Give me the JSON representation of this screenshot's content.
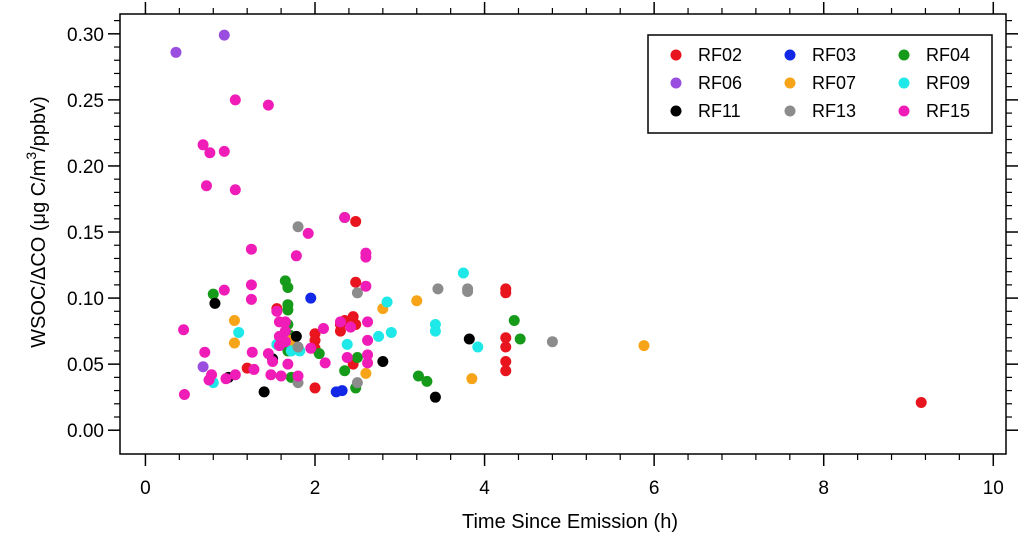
{
  "chart_data": {
    "type": "scatter",
    "xlabel": "Time Since Emission (h)",
    "ylabel": {
      "pre": "WSOC/",
      "delta": "Δ",
      "mid": "CO (",
      "mu": "μ",
      "post": "g C/m",
      "sup": "3",
      "tail": "/ppbv)"
    },
    "xlim": [
      -0.3,
      10.15
    ],
    "ylim": [
      -0.018,
      0.315
    ],
    "xticks": [
      0,
      2,
      4,
      6,
      8,
      10
    ],
    "xtick_labels": [
      "0",
      "2",
      "4",
      "6",
      "8",
      "10"
    ],
    "yticks": [
      0,
      0.05,
      0.1,
      0.15,
      0.2,
      0.25,
      0.3
    ],
    "ytick_labels": [
      "0.00",
      "0.05",
      "0.10",
      "0.15",
      "0.20",
      "0.25",
      "0.30"
    ],
    "grid": false,
    "legend_position": "top-right",
    "series": [
      {
        "name": "RF02",
        "color": "#e8141e",
        "points": [
          [
            1.2,
            0.047
          ],
          [
            1.55,
            0.092
          ],
          [
            2.0,
            0.032
          ],
          [
            2.0,
            0.062
          ],
          [
            2.0,
            0.068
          ],
          [
            2.0,
            0.073
          ],
          [
            2.3,
            0.075
          ],
          [
            2.3,
            0.08
          ],
          [
            2.35,
            0.083
          ],
          [
            2.45,
            0.05
          ],
          [
            2.45,
            0.086
          ],
          [
            2.48,
            0.08
          ],
          [
            2.48,
            0.112
          ],
          [
            2.48,
            0.158
          ],
          [
            4.25,
            0.107
          ],
          [
            4.25,
            0.104
          ],
          [
            4.25,
            0.07
          ],
          [
            4.25,
            0.063
          ],
          [
            4.25,
            0.052
          ],
          [
            4.25,
            0.045
          ],
          [
            9.15,
            0.021
          ]
        ]
      },
      {
        "name": "RF03",
        "color": "#1228e6",
        "points": [
          [
            1.95,
            0.1
          ],
          [
            2.25,
            0.029
          ],
          [
            2.32,
            0.03
          ]
        ]
      },
      {
        "name": "RF04",
        "color": "#169a1a",
        "points": [
          [
            0.8,
            0.103
          ],
          [
            1.65,
            0.113
          ],
          [
            1.68,
            0.108
          ],
          [
            1.68,
            0.095
          ],
          [
            1.68,
            0.091
          ],
          [
            1.68,
            0.08
          ],
          [
            1.7,
            0.072
          ],
          [
            1.68,
            0.06
          ],
          [
            1.72,
            0.04
          ],
          [
            2.05,
            0.058
          ],
          [
            2.35,
            0.045
          ],
          [
            2.35,
            0.161
          ],
          [
            2.48,
            0.032
          ],
          [
            2.5,
            0.055
          ],
          [
            3.22,
            0.041
          ],
          [
            3.32,
            0.037
          ],
          [
            4.35,
            0.083
          ],
          [
            4.42,
            0.069
          ]
        ]
      },
      {
        "name": "RF06",
        "color": "#9a4ee0",
        "points": [
          [
            0.36,
            0.286
          ],
          [
            0.93,
            0.299
          ],
          [
            0.68,
            0.048
          ]
        ]
      },
      {
        "name": "RF07",
        "color": "#f8a418",
        "points": [
          [
            1.05,
            0.083
          ],
          [
            1.05,
            0.066
          ],
          [
            1.72,
            0.068
          ],
          [
            2.6,
            0.043
          ],
          [
            2.8,
            0.092
          ],
          [
            3.2,
            0.098
          ],
          [
            3.85,
            0.039
          ],
          [
            5.88,
            0.064
          ]
        ]
      },
      {
        "name": "RF09",
        "color": "#1ee8e8",
        "points": [
          [
            0.8,
            0.036
          ],
          [
            1.1,
            0.074
          ],
          [
            1.55,
            0.065
          ],
          [
            1.72,
            0.06
          ],
          [
            1.82,
            0.06
          ],
          [
            2.38,
            0.065
          ],
          [
            2.75,
            0.071
          ],
          [
            2.85,
            0.097
          ],
          [
            2.9,
            0.074
          ],
          [
            3.42,
            0.08
          ],
          [
            3.42,
            0.075
          ],
          [
            3.75,
            0.119
          ],
          [
            3.92,
            0.063
          ]
        ]
      },
      {
        "name": "RF11",
        "color": "#000000",
        "points": [
          [
            0.82,
            0.096
          ],
          [
            0.98,
            0.04
          ],
          [
            1.4,
            0.029
          ],
          [
            1.5,
            0.054
          ],
          [
            1.78,
            0.071
          ],
          [
            2.8,
            0.052
          ],
          [
            3.42,
            0.025
          ],
          [
            3.82,
            0.069
          ]
        ]
      },
      {
        "name": "RF13",
        "color": "#8c8c8c",
        "points": [
          [
            1.8,
            0.154
          ],
          [
            1.8,
            0.063
          ],
          [
            1.8,
            0.036
          ],
          [
            2.5,
            0.104
          ],
          [
            2.5,
            0.036
          ],
          [
            3.45,
            0.107
          ],
          [
            3.8,
            0.107
          ],
          [
            3.8,
            0.105
          ],
          [
            4.8,
            0.067
          ]
        ]
      },
      {
        "name": "RF15",
        "color": "#f01cb8",
        "points": [
          [
            0.45,
            0.076
          ],
          [
            0.46,
            0.027
          ],
          [
            0.68,
            0.216
          ],
          [
            0.7,
            0.059
          ],
          [
            0.72,
            0.185
          ],
          [
            0.75,
            0.038
          ],
          [
            0.76,
            0.21
          ],
          [
            0.78,
            0.042
          ],
          [
            0.93,
            0.211
          ],
          [
            0.93,
            0.106
          ],
          [
            0.95,
            0.039
          ],
          [
            1.06,
            0.25
          ],
          [
            1.06,
            0.182
          ],
          [
            1.06,
            0.042
          ],
          [
            1.25,
            0.137
          ],
          [
            1.25,
            0.11
          ],
          [
            1.25,
            0.099
          ],
          [
            1.26,
            0.059
          ],
          [
            1.28,
            0.046
          ],
          [
            1.45,
            0.246
          ],
          [
            1.45,
            0.058
          ],
          [
            1.48,
            0.042
          ],
          [
            1.5,
            0.052
          ],
          [
            1.55,
            0.09
          ],
          [
            1.58,
            0.082
          ],
          [
            1.58,
            0.071
          ],
          [
            1.58,
            0.064
          ],
          [
            1.6,
            0.041
          ],
          [
            1.65,
            0.082
          ],
          [
            1.65,
            0.075
          ],
          [
            1.65,
            0.067
          ],
          [
            1.68,
            0.05
          ],
          [
            1.78,
            0.132
          ],
          [
            1.8,
            0.041
          ],
          [
            1.92,
            0.149
          ],
          [
            1.95,
            0.062
          ],
          [
            2.1,
            0.077
          ],
          [
            2.12,
            0.051
          ],
          [
            2.3,
            0.082
          ],
          [
            2.35,
            0.161
          ],
          [
            2.38,
            0.055
          ],
          [
            2.42,
            0.078
          ],
          [
            2.6,
            0.134
          ],
          [
            2.6,
            0.131
          ],
          [
            2.6,
            0.109
          ],
          [
            2.62,
            0.082
          ],
          [
            2.62,
            0.068
          ],
          [
            2.62,
            0.057
          ],
          [
            2.62,
            0.051
          ]
        ]
      }
    ]
  }
}
